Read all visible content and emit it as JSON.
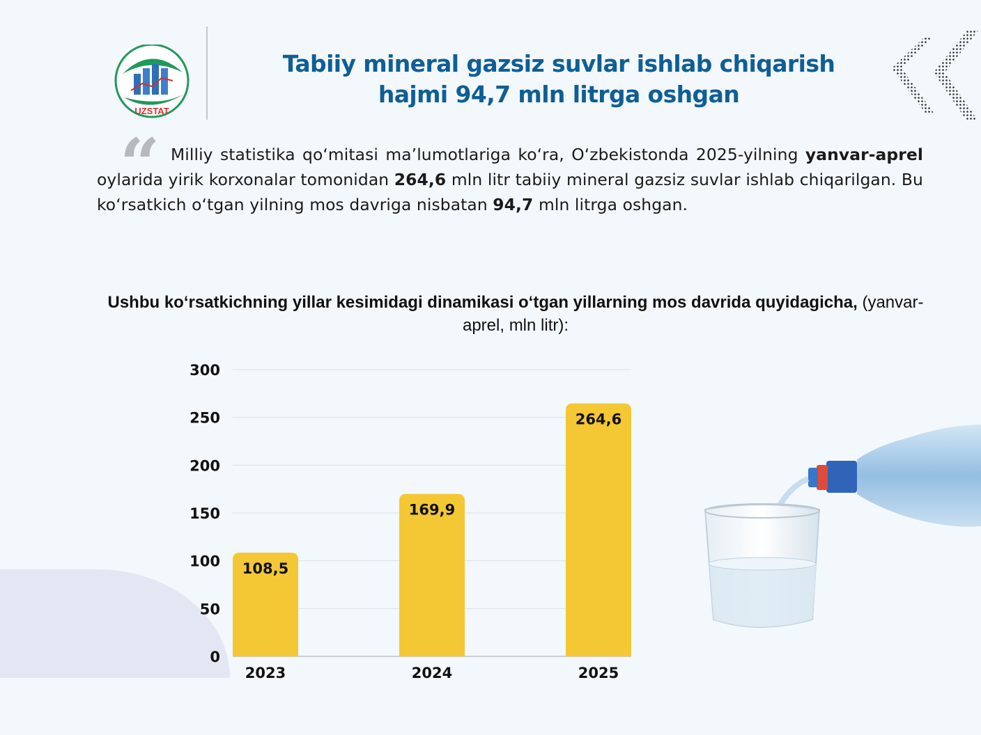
{
  "header": {
    "logo_text": "UZSTAT",
    "title_line1": "Tabiiy mineral gazsiz suvlar ishlab chiqarish",
    "title_line2": "hajmi  94,7 mln litrga oshgan"
  },
  "intro": {
    "t1": "Milliy statistika qo‘mitasi ma’lumotlariga ko‘ra, O‘zbekistonda 2025-yilning ",
    "period": "yanvar-aprel",
    "t2": " oylarida yirik korxonalar tomonidan ",
    "value": "264,6",
    "t3": " mln litr tabiiy mineral gazsiz suvlar ishlab chiqarilgan. Bu ko‘rsatkich o‘tgan yilning mos davriga nisbatan ",
    "increase": "94,7",
    "t4": " mln litrga oshgan."
  },
  "chart_heading": {
    "bold": "Ushbu ko‘rsatkichning yillar kesimidagi dinamikasi o‘tgan yillarning mos davrida quyidagicha,",
    "normal": " (yanvar-aprel, mln litr):"
  },
  "chart_data": {
    "type": "bar",
    "categories": [
      "2023",
      "2024",
      "2025"
    ],
    "values": [
      108.5,
      169.9,
      264.6
    ],
    "value_labels": [
      "108,5",
      "169,9",
      "264,6"
    ],
    "yticks": [
      0,
      50,
      100,
      150,
      200,
      250,
      300
    ],
    "ylim": [
      0,
      300
    ],
    "grid": true,
    "bar_color": "#f4c834"
  },
  "colors": {
    "title": "#0f5e96",
    "background": "#f3f8fc",
    "logo_green": "#1e9a58",
    "logo_blue": "#2f6fb8",
    "logo_red": "#d32f2f"
  },
  "decor": {
    "icons": [
      "uzstat-logo-icon",
      "dot-chevrons-icon",
      "water-bottle-glass-icon"
    ]
  }
}
